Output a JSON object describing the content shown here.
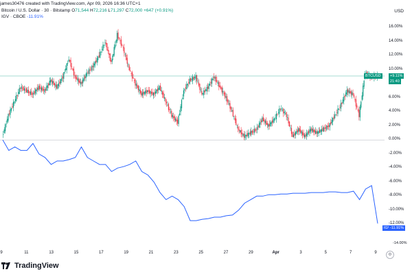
{
  "header": {
    "byline": "james30476 created with TradingView.com, Apr 09, 2026 16:36 UTC+1",
    "symbol_title": "Bitcoin / U.S. Dollar · 30 · Bitstamp",
    "ohlc": {
      "o_key": "O",
      "o": "71,544",
      "h_key": "H",
      "h": "72,216",
      "l_key": "L",
      "l": "71,297",
      "c_key": "C",
      "c": "72,000",
      "change": "+647 (+0.91%)"
    },
    "compare_title": "IGV · CBOE",
    "compare_value": "-11.91%"
  },
  "axis_unit": "USD",
  "tags": {
    "btc_label": "BTCUSD",
    "btc_value": "+9.11%",
    "btc_extra": "21:40",
    "igv_label": "IGV",
    "igv_value": "-11.91%",
    "current_right": "-14.00%"
  },
  "brand": {
    "name": "TradingView"
  },
  "colors": {
    "up": "#089981",
    "down": "#f23645",
    "compare_line": "#2962ff",
    "zero_line": "#b2b5be",
    "last_price_line": "#089981"
  },
  "chart_data": {
    "type": "line",
    "scale": "percent",
    "y_ticks": [
      "16.00%",
      "14.00%",
      "12.00%",
      "10.00%",
      "8.00%",
      "6.00%",
      "4.00%",
      "2.00%",
      "0.00%",
      "-2.00%",
      "-4.00%",
      "-6.00%",
      "-8.00%",
      "-10.00%",
      "-12.00%"
    ],
    "ylim": [
      -15,
      17
    ],
    "x_ticks": [
      "9",
      "11",
      "13",
      "15",
      "17",
      "19",
      "21",
      "23",
      "25",
      "27",
      "29",
      "Apr",
      "3",
      "5",
      "7",
      "9"
    ],
    "bold_ticks": [
      "Apr"
    ],
    "series": [
      {
        "name": "BTCUSD",
        "style": "candles",
        "x": [
          0,
          0.5,
          1,
          1.5,
          2,
          2.5,
          3,
          3.5,
          4,
          4.5,
          5,
          5.5,
          6,
          6.5,
          7,
          7.5,
          8,
          8.5,
          9,
          9.5,
          10,
          10.5,
          11,
          11.5,
          12,
          12.5,
          13,
          13.5,
          14,
          14.5,
          15,
          15.5,
          16,
          16.5,
          17,
          17.5,
          18,
          18.5,
          19,
          19.5,
          20,
          20.5,
          21,
          21.5,
          22,
          22.5,
          23,
          23.5,
          24,
          24.5,
          25,
          25.5,
          26,
          26.5,
          27,
          27.5,
          28,
          28.5,
          29,
          29.5,
          30,
          30.5,
          31
        ],
        "values": [
          0.5,
          3.5,
          5.5,
          7.5,
          7,
          6.5,
          7.5,
          7,
          8.5,
          7.5,
          9,
          11.5,
          9,
          8,
          9.5,
          10.5,
          12,
          14,
          11,
          15,
          13,
          10,
          8,
          6.5,
          7,
          6.5,
          7.5,
          5.5,
          3.5,
          2.5,
          7,
          8.5,
          9,
          6.5,
          7.5,
          9,
          7.5,
          6,
          4,
          1.5,
          0.5,
          1,
          1.5,
          3,
          2,
          3,
          4.5,
          3.5,
          0.5,
          1.5,
          0.5,
          1.5,
          1,
          1.5,
          2,
          3.5,
          5,
          7,
          6.5,
          3.5,
          9.5,
          9,
          9.1
        ]
      },
      {
        "name": "IGV",
        "style": "line",
        "x": [
          0,
          0.5,
          1,
          1.5,
          2,
          2.5,
          3,
          3.5,
          4,
          4.5,
          5,
          5.5,
          6,
          6.5,
          7,
          7.5,
          8,
          8.5,
          9,
          9.5,
          10,
          10.5,
          11,
          11.5,
          12,
          12.5,
          13,
          13.5,
          14,
          14.5,
          15,
          15.5,
          16,
          16.5,
          17,
          17.5,
          18,
          18.5,
          19,
          19.5,
          20,
          20.5,
          21,
          21.5,
          22,
          22.5,
          23,
          23.5,
          24,
          24.5,
          25,
          25.5,
          26,
          26.5,
          27,
          27.5,
          28,
          28.5,
          29,
          29.5,
          30,
          30.5,
          31
        ],
        "values": [
          0,
          -1.5,
          -1,
          -1.5,
          -1.5,
          -0.5,
          -2,
          -2.5,
          -3.5,
          -3,
          -3,
          -2.8,
          -2.5,
          -1,
          -2.5,
          -3,
          -3.5,
          -3.5,
          -4.5,
          -4,
          -3.8,
          -3.5,
          -3,
          -4.5,
          -5,
          -6,
          -7.5,
          -8.5,
          -8,
          -8.5,
          -9.5,
          -11.5,
          -11.5,
          -11.3,
          -11.2,
          -11,
          -11,
          -10.8,
          -10.7,
          -10,
          -9,
          -8.5,
          -8,
          -8,
          -7.8,
          -7.8,
          -7.7,
          -7.7,
          -7.6,
          -7.6,
          -7.6,
          -7.5,
          -7.5,
          -7.5,
          -7.4,
          -7.4,
          -7.5,
          -7.5,
          -7.3,
          -8.5,
          -7,
          -6.5,
          -11.91
        ]
      }
    ]
  }
}
